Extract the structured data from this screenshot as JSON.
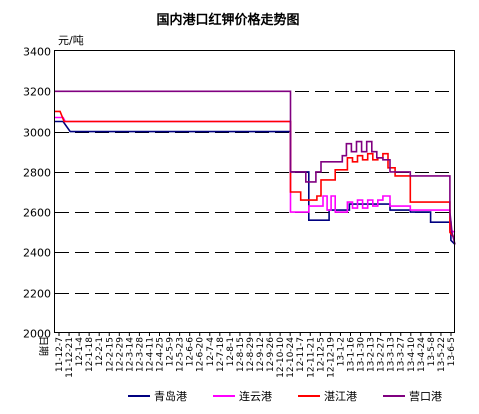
{
  "chart_data": {
    "type": "line",
    "title": "国内港口红钾价格走势图",
    "ylabel": "元/吨",
    "xlabel": "日期",
    "ylim": [
      2000,
      3400
    ],
    "yticks": [
      2000,
      2200,
      2400,
      2600,
      2800,
      3000,
      3200,
      3400
    ],
    "grid": true,
    "legend_position": "bottom",
    "categories": [
      "11-12-7",
      "11-12-21",
      "12-1-4",
      "12-1-18",
      "12-2-1",
      "12-2-15",
      "12-2-29",
      "12-3-14",
      "12-3-28",
      "12-4-11",
      "12-4-25",
      "12-5-9",
      "12-5-23",
      "12-6-6",
      "12-6-20",
      "12-7-4",
      "12-7-18",
      "12-8-1",
      "12-8-15",
      "12-8-29",
      "12-9-12",
      "12-9-26",
      "12-10-10",
      "12-10-24",
      "12-11-7",
      "12-11-21",
      "12-12-5",
      "12-12-19",
      "13-1-2",
      "13-1-16",
      "13-1-30",
      "13-2-13",
      "13-2-27",
      "13-3-13",
      "13-3-27",
      "13-4-10",
      "13-4-24",
      "13-5-8",
      "13-5-22",
      "13-6-5"
    ],
    "series": [
      {
        "name": "青岛港",
        "color": "#000080",
        "points": [
          [
            0,
            3050
          ],
          [
            0.8,
            3050
          ],
          [
            1.5,
            3000
          ],
          [
            23.2,
            3000
          ],
          [
            23.2,
            2800
          ],
          [
            25,
            2800
          ],
          [
            25,
            2560
          ],
          [
            27,
            2560
          ],
          [
            27,
            2610
          ],
          [
            29,
            2610
          ],
          [
            29,
            2640
          ],
          [
            33,
            2640
          ],
          [
            33,
            2610
          ],
          [
            35,
            2610
          ],
          [
            35,
            2600
          ],
          [
            37,
            2600
          ],
          [
            37,
            2550
          ],
          [
            39,
            2550
          ],
          [
            39,
            2460
          ],
          [
            39.4,
            2440
          ]
        ]
      },
      {
        "name": "连云港",
        "color": "#ff00ff",
        "points": [
          [
            0,
            3070
          ],
          [
            0.8,
            3070
          ],
          [
            1,
            3050
          ],
          [
            23.2,
            3050
          ],
          [
            23.2,
            2600
          ],
          [
            25,
            2600
          ],
          [
            25,
            2630
          ],
          [
            26.4,
            2630
          ],
          [
            26.4,
            2680
          ],
          [
            26.8,
            2680
          ],
          [
            26.8,
            2610
          ],
          [
            27.2,
            2610
          ],
          [
            27.2,
            2680
          ],
          [
            27.6,
            2680
          ],
          [
            27.6,
            2600
          ],
          [
            28.8,
            2600
          ],
          [
            28.8,
            2650
          ],
          [
            29.3,
            2650
          ],
          [
            29.3,
            2620
          ],
          [
            29.8,
            2620
          ],
          [
            29.8,
            2660
          ],
          [
            30.3,
            2660
          ],
          [
            30.3,
            2620
          ],
          [
            30.8,
            2620
          ],
          [
            30.8,
            2660
          ],
          [
            31.3,
            2660
          ],
          [
            31.3,
            2630
          ],
          [
            31.8,
            2630
          ],
          [
            31.8,
            2660
          ],
          [
            32.3,
            2660
          ],
          [
            32.3,
            2680
          ],
          [
            33,
            2680
          ],
          [
            33,
            2630
          ],
          [
            35,
            2630
          ],
          [
            35,
            2610
          ],
          [
            38.9,
            2610
          ],
          [
            38.9,
            2510
          ],
          [
            39.4,
            2500
          ]
        ]
      },
      {
        "name": "湛江港",
        "color": "#ff0000",
        "points": [
          [
            0,
            3100
          ],
          [
            0.5,
            3100
          ],
          [
            0.9,
            3050
          ],
          [
            23.2,
            3050
          ],
          [
            23.2,
            2700
          ],
          [
            24.2,
            2700
          ],
          [
            24.2,
            2660
          ],
          [
            25.8,
            2660
          ],
          [
            25.8,
            2680
          ],
          [
            26.2,
            2680
          ],
          [
            26.2,
            2760
          ],
          [
            27.6,
            2760
          ],
          [
            27.6,
            2810
          ],
          [
            28.8,
            2810
          ],
          [
            28.8,
            2870
          ],
          [
            29.3,
            2870
          ],
          [
            29.3,
            2850
          ],
          [
            29.8,
            2850
          ],
          [
            29.8,
            2880
          ],
          [
            30.3,
            2880
          ],
          [
            30.3,
            2860
          ],
          [
            30.8,
            2860
          ],
          [
            30.8,
            2890
          ],
          [
            31.3,
            2890
          ],
          [
            31.3,
            2860
          ],
          [
            31.8,
            2860
          ],
          [
            31.8,
            2870
          ],
          [
            32.3,
            2870
          ],
          [
            32.3,
            2890
          ],
          [
            32.8,
            2890
          ],
          [
            32.8,
            2820
          ],
          [
            33.5,
            2820
          ],
          [
            33.5,
            2780
          ],
          [
            35,
            2780
          ],
          [
            35,
            2650
          ],
          [
            38.9,
            2650
          ],
          [
            38.9,
            2500
          ],
          [
            39.2,
            2480
          ],
          [
            39.4,
            2480
          ]
        ]
      },
      {
        "name": "营口港",
        "color": "#800080",
        "points": [
          [
            0,
            3200
          ],
          [
            23.2,
            3200
          ],
          [
            23.2,
            2800
          ],
          [
            24.7,
            2800
          ],
          [
            24.7,
            2750
          ],
          [
            25.7,
            2750
          ],
          [
            25.7,
            2800
          ],
          [
            26.2,
            2800
          ],
          [
            26.2,
            2850
          ],
          [
            28.3,
            2850
          ],
          [
            28.3,
            2880
          ],
          [
            28.7,
            2880
          ],
          [
            28.7,
            2940
          ],
          [
            29.2,
            2940
          ],
          [
            29.2,
            2900
          ],
          [
            29.7,
            2900
          ],
          [
            29.7,
            2950
          ],
          [
            30.2,
            2950
          ],
          [
            30.2,
            2900
          ],
          [
            30.7,
            2900
          ],
          [
            30.7,
            2950
          ],
          [
            31.2,
            2950
          ],
          [
            31.2,
            2900
          ],
          [
            31.7,
            2900
          ],
          [
            31.7,
            2870
          ],
          [
            32.3,
            2870
          ],
          [
            32.3,
            2860
          ],
          [
            33,
            2860
          ],
          [
            33,
            2800
          ],
          [
            35,
            2800
          ],
          [
            35,
            2780
          ],
          [
            38.9,
            2780
          ],
          [
            38.9,
            2600
          ],
          [
            39.1,
            2500
          ],
          [
            39.4,
            2440
          ]
        ]
      }
    ]
  }
}
